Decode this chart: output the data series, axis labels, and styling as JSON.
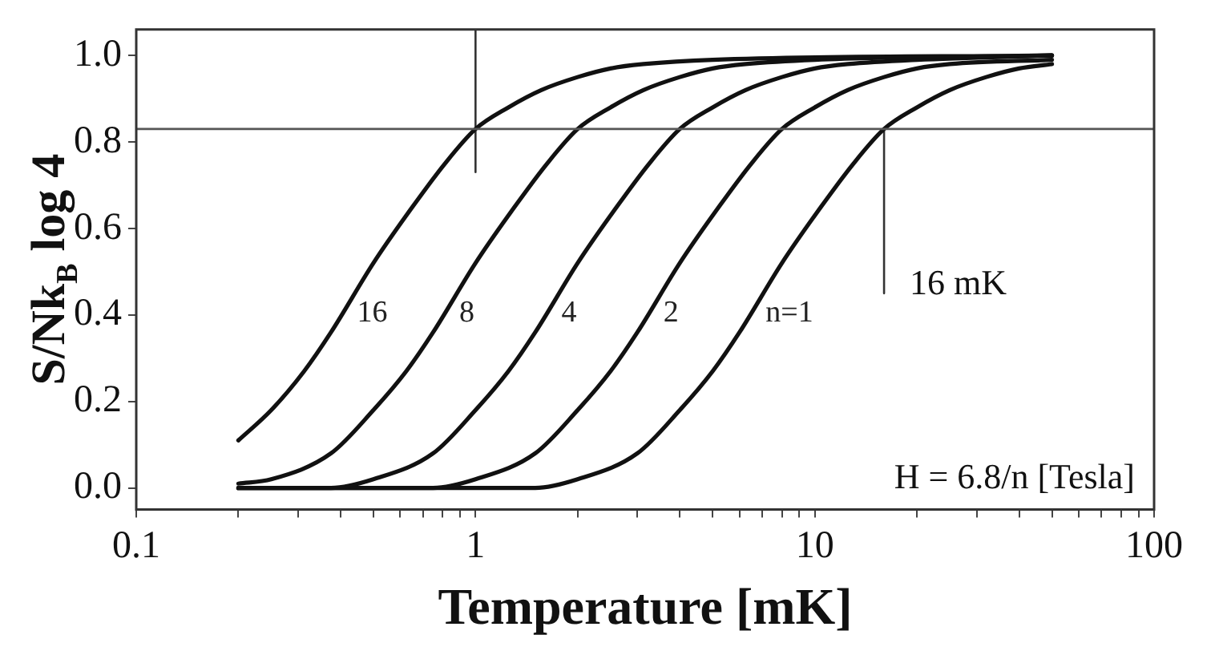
{
  "chart_data": {
    "type": "line",
    "xlabel": "Temperature [mK]",
    "ylabel": "S/Nk$_{B}$ log 4",
    "log": "x",
    "grid": false,
    "legend": false,
    "marker": "none",
    "line_style": "solid",
    "xlim": [
      0.1,
      100
    ],
    "xticks": [
      0.1,
      {
        "value": 0.2,
        "label": null
      },
      {
        "value": 0.3,
        "label": null
      },
      {
        "value": 0.4,
        "label": null
      },
      {
        "value": 0.5,
        "label": null
      },
      {
        "value": 0.6,
        "label": null
      },
      {
        "value": 0.7,
        "label": null
      },
      {
        "value": 0.8,
        "label": null
      },
      {
        "value": 0.9,
        "label": null
      },
      1,
      {
        "value": 2,
        "label": null
      },
      {
        "value": 3,
        "label": null
      },
      {
        "value": 4,
        "label": null
      },
      {
        "value": 5,
        "label": null
      },
      {
        "value": 6,
        "label": null
      },
      {
        "value": 7,
        "label": null
      },
      {
        "value": 8,
        "label": null
      },
      {
        "value": 9,
        "label": null
      },
      10,
      {
        "value": 20,
        "label": null
      },
      {
        "value": 30,
        "label": null
      },
      {
        "value": 40,
        "label": null
      },
      {
        "value": 50,
        "label": null
      },
      {
        "value": 60,
        "label": null
      },
      {
        "value": 70,
        "label": null
      },
      {
        "value": 80,
        "label": null
      },
      {
        "value": 90,
        "label": null
      },
      100
    ],
    "ylim": [
      -0.05,
      1.06
    ],
    "yticks": [
      {
        "value": 0,
        "label": "0.0"
      },
      0.2,
      0.4,
      0.6,
      0.8,
      {
        "value": 1,
        "label": "1.0"
      }
    ],
    "series": [
      {
        "name": "16",
        "color": "#111111",
        "x": [
          0.2,
          0.25,
          0.3125,
          0.375,
          0.5,
          0.625,
          0.8125,
          1,
          1.25,
          1.5625,
          2,
          2.5,
          3.125,
          5,
          50
        ],
        "values": [
          0.11,
          0.18,
          0.27,
          0.36,
          0.52,
          0.63,
          0.75,
          0.83,
          0.88,
          0.92,
          0.95,
          0.97,
          0.98,
          0.99,
          1.0
        ]
      },
      {
        "name": "8",
        "color": "#111111",
        "x": [
          0.2,
          0.25,
          0.375,
          0.5,
          0.625,
          0.75,
          1,
          1.25,
          1.625,
          2,
          2.5,
          3.125,
          4,
          5,
          6.25,
          10,
          50
        ],
        "values": [
          0.01,
          0.02,
          0.08,
          0.18,
          0.27,
          0.36,
          0.52,
          0.63,
          0.75,
          0.83,
          0.88,
          0.92,
          0.95,
          0.97,
          0.98,
          0.99,
          1.0
        ]
      },
      {
        "name": "4",
        "color": "#111111",
        "x": [
          0.2,
          0.375,
          0.5,
          0.75,
          1,
          1.25,
          1.5,
          2,
          2.5,
          3.25,
          4,
          5,
          6.25,
          8,
          10,
          12.5,
          20,
          50
        ],
        "values": [
          0,
          0,
          0.02,
          0.08,
          0.18,
          0.27,
          0.36,
          0.52,
          0.63,
          0.75,
          0.83,
          0.88,
          0.92,
          0.95,
          0.97,
          0.98,
          0.99,
          1.0
        ]
      },
      {
        "name": "2",
        "color": "#111111",
        "x": [
          0.2,
          0.5,
          0.75,
          1,
          1.5,
          2,
          2.5,
          3,
          4,
          5,
          6.5,
          8,
          10,
          12.5,
          16,
          20,
          25,
          50
        ],
        "values": [
          0,
          0,
          0,
          0.02,
          0.08,
          0.18,
          0.27,
          0.36,
          0.52,
          0.63,
          0.75,
          0.83,
          0.88,
          0.92,
          0.95,
          0.97,
          0.98,
          0.99
        ]
      },
      {
        "name": "n=1",
        "color": "#111111",
        "x": [
          0.2,
          0.5,
          1,
          1.5,
          2,
          3,
          4,
          5,
          6,
          8,
          10,
          13,
          16,
          20,
          25,
          32,
          40,
          50
        ],
        "values": [
          0,
          0,
          0,
          0,
          0.02,
          0.08,
          0.18,
          0.27,
          0.36,
          0.52,
          0.63,
          0.75,
          0.83,
          0.88,
          0.92,
          0.95,
          0.97,
          0.98
        ]
      },
      {
        "color": "#333333",
        "x": [
          1,
          1
        ],
        "values": [
          0.73,
          1.06
        ]
      },
      {
        "color": "#333333",
        "x": [
          16,
          16
        ],
        "values": [
          0.45,
          0.83
        ]
      }
    ],
    "ref_lines": [
      {
        "axis": "y",
        "value": 0.83,
        "color": "#555555"
      }
    ],
    "annotations": [
      {
        "text": "16 mK",
        "x": 16,
        "y": 0.47
      },
      "H = 6.8/n [Tesla]"
    ]
  }
}
